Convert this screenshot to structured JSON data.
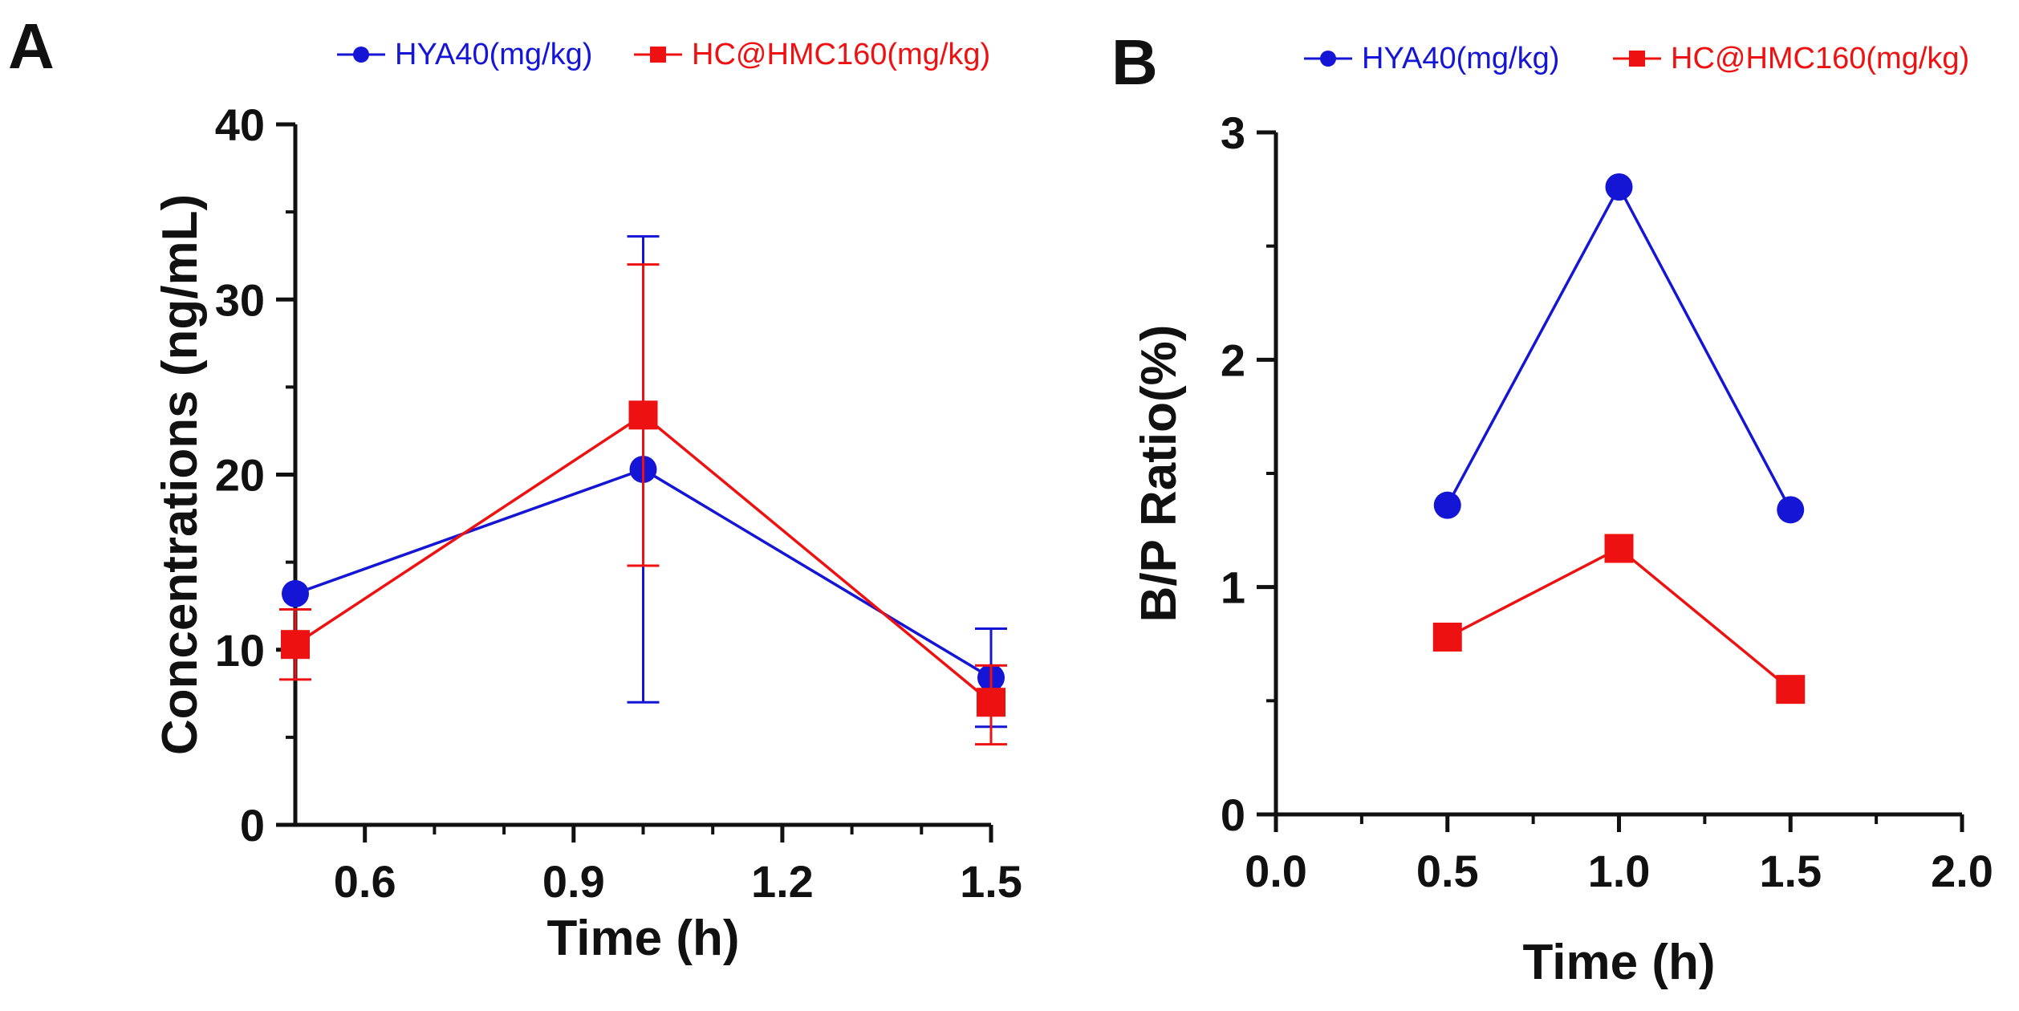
{
  "chart_data": [
    {
      "type": "line",
      "panel_label": "A",
      "xlabel": "Time (h)",
      "ylabel": "Concentrations (ng/mL)",
      "xlim": [
        0.5,
        1.5
      ],
      "ylim": [
        0,
        40
      ],
      "xticks": [
        "0.6",
        "0.9",
        "1.2",
        "1.5"
      ],
      "yticks": [
        "0",
        "10",
        "20",
        "30",
        "40"
      ],
      "grid": false,
      "legend_position": "top",
      "series": [
        {
          "name": "HYA40(mg/kg)",
          "marker": "circle",
          "color": "#1515d6",
          "x": [
            0.5,
            1.0,
            1.5
          ],
          "y": [
            13.2,
            20.3,
            8.4
          ],
          "err_low": [
            13.2,
            7.0,
            5.6
          ],
          "err_high": [
            13.2,
            33.6,
            11.2
          ]
        },
        {
          "name": "HC@HMC160(mg/kg)",
          "marker": "square",
          "color": "#ee1111",
          "x": [
            0.5,
            1.0,
            1.5
          ],
          "y": [
            10.3,
            23.4,
            7.0
          ],
          "err_low": [
            8.3,
            14.8,
            4.6
          ],
          "err_high": [
            12.3,
            32.0,
            9.1
          ]
        }
      ]
    },
    {
      "type": "line",
      "panel_label": "B",
      "xlabel": "Time (h)",
      "ylabel": "B/P Ratio(%)",
      "xlim": [
        0.0,
        2.0
      ],
      "ylim": [
        0,
        3
      ],
      "xticks": [
        "0.0",
        "0.5",
        "1.0",
        "1.5",
        "2.0"
      ],
      "yticks": [
        "0",
        "1",
        "2",
        "3"
      ],
      "grid": false,
      "legend_position": "top",
      "series": [
        {
          "name": "HYA40(mg/kg)",
          "marker": "circle",
          "color": "#1515d6",
          "x": [
            0.5,
            1.0,
            1.5
          ],
          "y": [
            1.36,
            2.76,
            1.34
          ]
        },
        {
          "name": "HC@HMC160(mg/kg)",
          "marker": "square",
          "color": "#ee1111",
          "x": [
            0.5,
            1.0,
            1.5
          ],
          "y": [
            0.78,
            1.17,
            0.55
          ]
        }
      ]
    }
  ]
}
